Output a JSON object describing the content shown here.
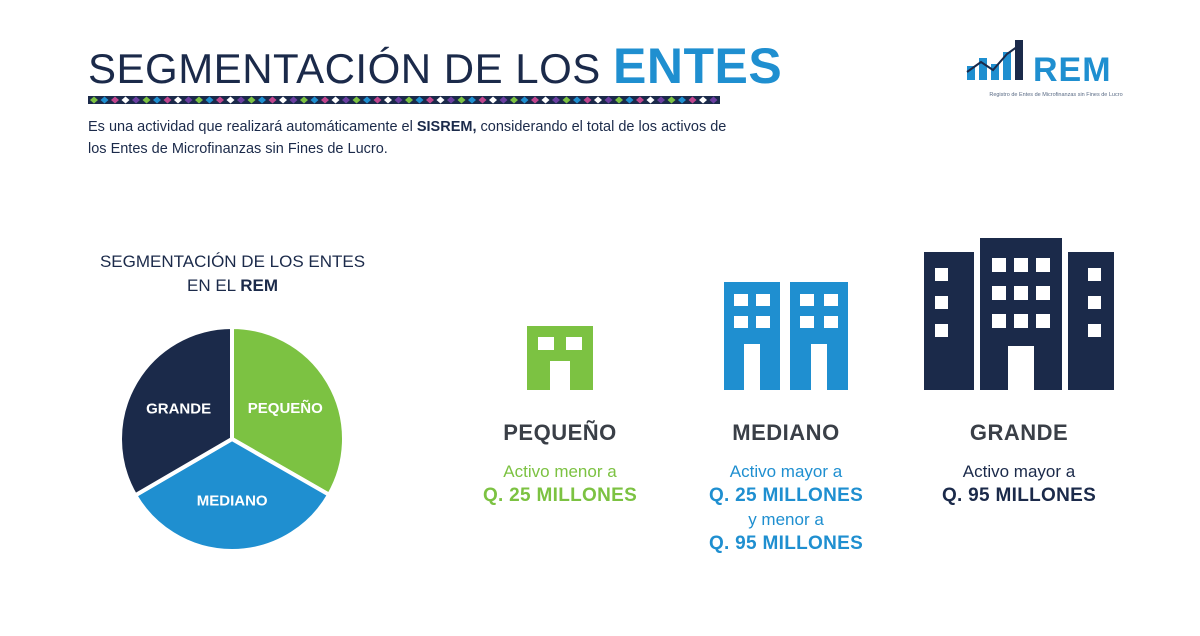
{
  "header": {
    "title_main": "SEGMENTACIÓN DE LOS",
    "title_highlight": "ENTES",
    "intro_pre": "Es una actividad que realizará automáticamente el ",
    "intro_bold": "SISREM,",
    "intro_post": " considerando el total de los activos de los Entes de Microfinanzas sin Fines de Lucro."
  },
  "logo": {
    "name": "REM",
    "tagline": "Registro de Entes de Microfinanzas sin Fines de Lucro"
  },
  "segmentation": {
    "heading_line1": "SEGMENTACIÓN DE LOS ENTES",
    "heading_line2_pre": "EN EL ",
    "heading_line2_bold": "REM"
  },
  "chart_data": {
    "type": "pie",
    "title": "",
    "slices": [
      {
        "label": "PEQUEÑO",
        "value": 33.3,
        "color": "#7cc242"
      },
      {
        "label": "MEDIANO",
        "value": 33.3,
        "color": "#1f8fd0"
      },
      {
        "label": "GRANDE",
        "value": 33.4,
        "color": "#1b2a4a"
      }
    ]
  },
  "categories": [
    {
      "title": "PEQUEÑO",
      "desc_line1": "Activo menor a",
      "desc_line2": "Q. 25 MILLONES",
      "desc_line3": "",
      "desc_line4": "",
      "color": "#7cc242"
    },
    {
      "title": "MEDIANO",
      "desc_line1": "Activo mayor a",
      "desc_line2": "Q. 25 MILLONES",
      "desc_line3": "y menor a",
      "desc_line4": "Q. 95 MILLONES",
      "color": "#1f8fd0"
    },
    {
      "title": "GRANDE",
      "desc_line1": "Activo mayor a",
      "desc_line2": "Q. 95 MILLONES",
      "desc_line3": "",
      "desc_line4": "",
      "color": "#1b2a4a"
    }
  ],
  "icons": {
    "small": "small-building-icon",
    "medium": "medium-buildings-icon",
    "large": "large-buildings-icon"
  }
}
